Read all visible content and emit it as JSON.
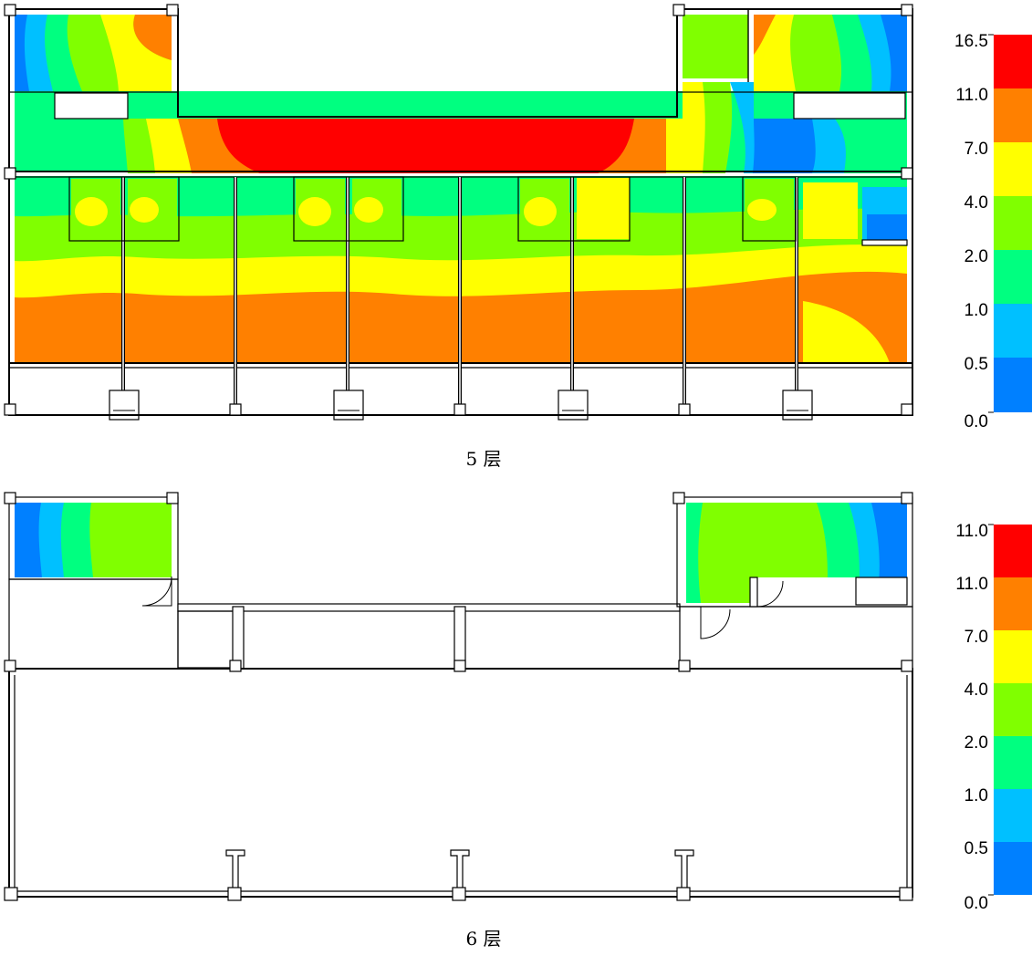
{
  "floors": [
    {
      "caption": "5 层",
      "legend_ticks": [
        "16.5",
        "11.0",
        "7.0",
        "4.0",
        "2.0",
        "1.0",
        "0.5",
        "0.0"
      ]
    },
    {
      "caption": "6 层",
      "legend_ticks": [
        "11.0",
        "11.0",
        "7.0",
        "4.0",
        "2.0",
        "1.0",
        "0.5",
        "0.0"
      ]
    }
  ],
  "colors": {
    "band_0": "#0080ff",
    "band_1": "#00c0ff",
    "band_2": "#00ff80",
    "band_3": "#80ff00",
    "band_4": "#ffff00",
    "band_5": "#ff8000",
    "band_6": "#ff0000"
  }
}
